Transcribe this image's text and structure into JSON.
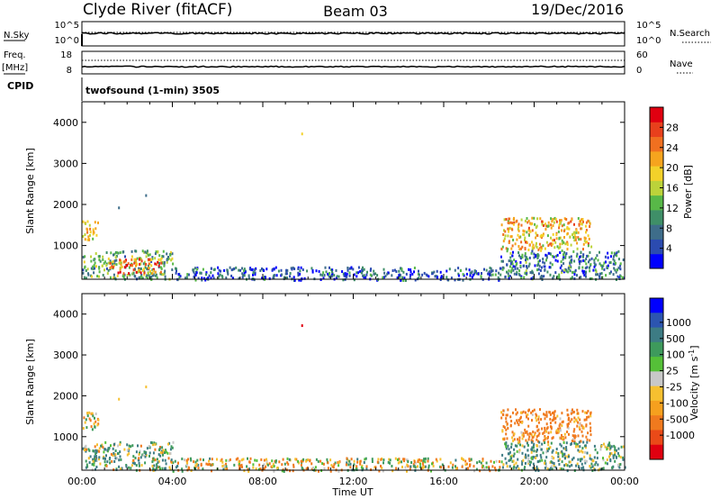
{
  "header": {
    "station": "Clyde River (fitACF)",
    "beam": "Beam 03",
    "date": "19/Dec/2016"
  },
  "sky_panel": {
    "left_label": "N.Sky",
    "right_label": "N.Search",
    "left_ticks": [
      "10^5",
      "10^0"
    ],
    "right_ticks": [
      "10^5",
      "10^0"
    ]
  },
  "freq_panel": {
    "left_label_1": "Freq.",
    "left_label_2": "[MHz]",
    "right_label": "Nave",
    "left_ticks": [
      "18",
      "8"
    ],
    "right_ticks": [
      "60",
      "0"
    ]
  },
  "cpid_panel": {
    "label": "CPID",
    "text": "twofsound (1-min) 3505"
  },
  "colors": {
    "power": [
      "#0000ff",
      "#2b4bb0",
      "#3e6d8a",
      "#3f8f68",
      "#58b848",
      "#bcd33a",
      "#f3d12a",
      "#f6a41e",
      "#f07020",
      "#e8401c",
      "#e00010"
    ],
    "velocity": [
      "#0000ff",
      "#2c55b0",
      "#3d7c84",
      "#3e9a5c",
      "#55c038",
      "#c8c8c8",
      "#f6c030",
      "#f6a01e",
      "#f07a1e",
      "#ea4a18",
      "#e00010"
    ]
  },
  "chart_data": [
    {
      "type": "heatmap",
      "panel": "power",
      "xlabel": "",
      "ylabel": "Slant Range [km]",
      "ylim": [
        180,
        4500
      ],
      "yticks": [
        "1000",
        "2000",
        "3000",
        "4000"
      ],
      "colorbar_label": "Power [dB]",
      "colorbar_ticks": [
        "4",
        "8",
        "12",
        "16",
        "20",
        "24",
        "28"
      ],
      "colorbar_range": [
        0,
        32
      ],
      "regions": [
        {
          "t0": 0.0,
          "t1": 0.7,
          "r0": 1150,
          "r1": 1620,
          "value": 18
        },
        {
          "t0": 0.0,
          "t1": 4.0,
          "r0": 200,
          "r1": 900,
          "value": 12
        },
        {
          "t0": 1.2,
          "t1": 3.5,
          "r0": 350,
          "r1": 700,
          "value": 24
        },
        {
          "t0": 4.0,
          "t1": 18.5,
          "r0": 180,
          "r1": 500,
          "value": 6
        },
        {
          "t0": 18.5,
          "t1": 22.5,
          "r0": 900,
          "r1": 1700,
          "value": 20
        },
        {
          "t0": 18.5,
          "t1": 24.0,
          "r0": 200,
          "r1": 900,
          "value": 8
        }
      ],
      "isolated_points": [
        {
          "t": 9.7,
          "r": 3750,
          "value": 18
        },
        {
          "t": 2.8,
          "r": 2250,
          "value": 6
        },
        {
          "t": 1.6,
          "r": 1950,
          "value": 6
        }
      ]
    },
    {
      "type": "heatmap",
      "panel": "velocity",
      "xlabel": "Time UT",
      "ylabel": "Slant Range [km]",
      "ylim": [
        180,
        4500
      ],
      "yticks": [
        "1000",
        "2000",
        "3000",
        "4000"
      ],
      "xticks": [
        "00:00",
        "04:00",
        "08:00",
        "12:00",
        "16:00",
        "20:00",
        "00:00"
      ],
      "xlim": [
        0,
        24
      ],
      "colorbar_label": "Velocity [m s^-1]",
      "colorbar_ticks": [
        "1000",
        "500",
        "100",
        "25",
        "-25",
        "-100",
        "-500",
        "-1000"
      ],
      "regions": [
        {
          "t0": 0.0,
          "t1": 0.7,
          "r0": 1150,
          "r1": 1620,
          "value": -100
        },
        {
          "t0": 0.0,
          "t1": 4.0,
          "r0": 200,
          "r1": 900,
          "value": 50
        },
        {
          "t0": 4.0,
          "t1": 18.5,
          "r0": 180,
          "r1": 500,
          "value": -80
        },
        {
          "t0": 18.5,
          "t1": 22.5,
          "r0": 900,
          "r1": 1700,
          "value": -200
        },
        {
          "t0": 18.5,
          "t1": 24.0,
          "r0": 200,
          "r1": 900,
          "value": 100
        }
      ],
      "isolated_points": [
        {
          "t": 9.7,
          "r": 3750,
          "value": -1000
        },
        {
          "t": 2.8,
          "r": 2250,
          "value": -50
        },
        {
          "t": 1.6,
          "r": 1950,
          "value": -60
        }
      ]
    }
  ]
}
